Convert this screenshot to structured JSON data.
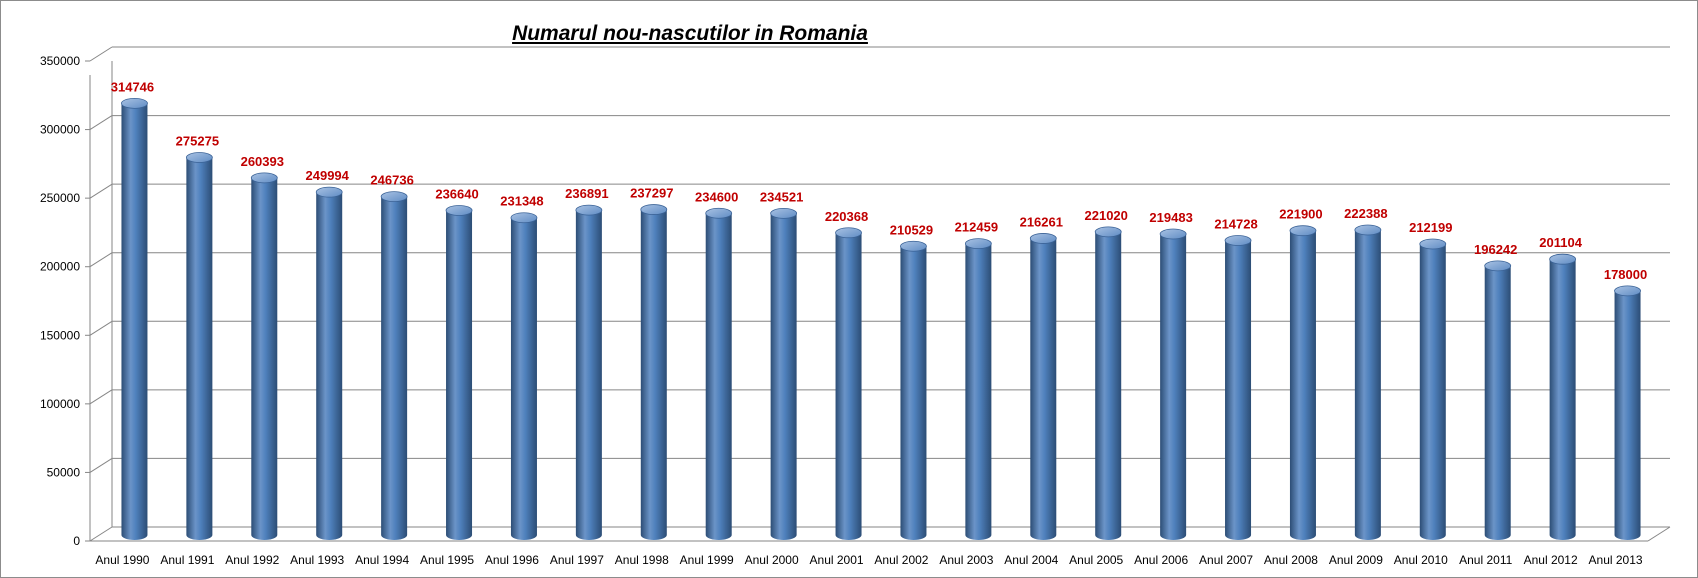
{
  "chart_data": {
    "type": "bar",
    "title": "Numarul nou-nascutilor in Romania",
    "xlabel": "",
    "ylabel": "",
    "ylim": [
      0,
      350000
    ],
    "y_ticks": [
      "0",
      "50000",
      "100000",
      "150000",
      "200000",
      "250000",
      "300000",
      "350000"
    ],
    "grid": true,
    "legend": "none",
    "categories": [
      "Anul 1990",
      "Anul 1991",
      "Anul 1992",
      "Anul 1993",
      "Anul 1994",
      "Anul 1995",
      "Anul 1996",
      "Anul 1997",
      "Anul 1998",
      "Anul 1999",
      "Anul 2000",
      "Anul 2001",
      "Anul 2002",
      "Anul 2003",
      "Anul 2004",
      "Anul 2005",
      "Anul 2006",
      "Anul 2007",
      "Anul 2008",
      "Anul 2009",
      "Anul 2010",
      "Anul 2011",
      "Anul 2012",
      "Anul 2013"
    ],
    "values": [
      314746,
      275275,
      260393,
      249994,
      246736,
      236640,
      231348,
      236891,
      237297,
      234600,
      234521,
      220368,
      210529,
      212459,
      216261,
      221020,
      219483,
      214728,
      221900,
      222388,
      212199,
      196242,
      201104,
      178000
    ],
    "data_labels": [
      "314746",
      "275275",
      "260393",
      "249994",
      "246736",
      "236640",
      "231348",
      "236891",
      "237297",
      "234600",
      "234521",
      "220368",
      "210529",
      "212459",
      "216261",
      "221020",
      "219483",
      "214728",
      "221900",
      "222388",
      "212199",
      "196242",
      "201104",
      "178000"
    ],
    "colors": {
      "bar": "#4f81bd",
      "bar_dark": "#2c4d75",
      "bar_light": "#95b3d7",
      "label": "#c00000",
      "grid": "#868686"
    }
  }
}
